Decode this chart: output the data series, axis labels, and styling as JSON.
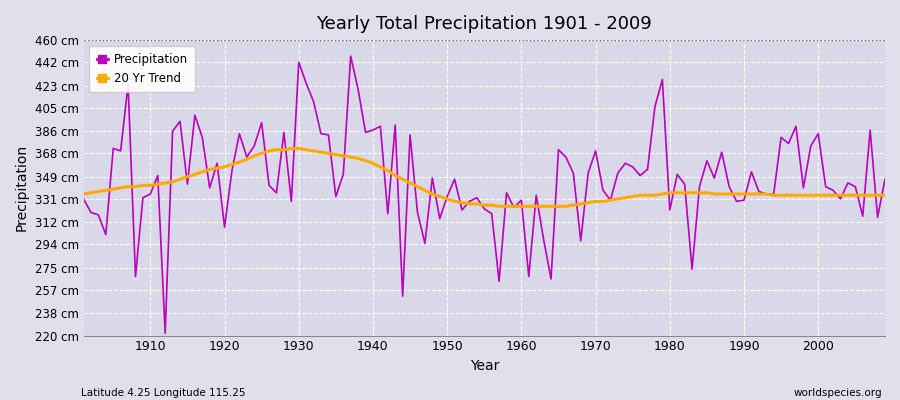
{
  "title": "Yearly Total Precipitation 1901 - 2009",
  "xlabel": "Year",
  "ylabel": "Precipitation",
  "footnote_left": "Latitude 4.25 Longitude 115.25",
  "footnote_right": "worldspecies.org",
  "legend": [
    "Precipitation",
    "20 Yr Trend"
  ],
  "precip_color": "#bb00bb",
  "trend_color": "#ffaa00",
  "bg_color": "#e0e0ec",
  "plot_bg_color": "#d8d8e8",
  "ylim": [
    220,
    460
  ],
  "yticks": [
    220,
    238,
    257,
    275,
    294,
    312,
    331,
    349,
    368,
    386,
    405,
    423,
    442,
    460
  ],
  "xlim": [
    1901,
    2009
  ],
  "xticks": [
    1910,
    1920,
    1930,
    1940,
    1950,
    1960,
    1970,
    1980,
    1990,
    2000
  ],
  "years": [
    1901,
    1902,
    1903,
    1904,
    1905,
    1906,
    1907,
    1908,
    1909,
    1910,
    1911,
    1912,
    1913,
    1914,
    1915,
    1916,
    1917,
    1918,
    1919,
    1920,
    1921,
    1922,
    1923,
    1924,
    1925,
    1926,
    1927,
    1928,
    1929,
    1930,
    1931,
    1932,
    1933,
    1934,
    1935,
    1936,
    1937,
    1938,
    1939,
    1940,
    1941,
    1942,
    1943,
    1944,
    1945,
    1946,
    1947,
    1948,
    1949,
    1950,
    1951,
    1952,
    1953,
    1954,
    1955,
    1956,
    1957,
    1958,
    1959,
    1960,
    1961,
    1962,
    1963,
    1964,
    1965,
    1966,
    1967,
    1968,
    1969,
    1970,
    1971,
    1972,
    1973,
    1974,
    1975,
    1976,
    1977,
    1978,
    1979,
    1980,
    1981,
    1982,
    1983,
    1984,
    1985,
    1986,
    1987,
    1988,
    1989,
    1990,
    1991,
    1992,
    1993,
    1994,
    1995,
    1996,
    1997,
    1998,
    1999,
    2000,
    2001,
    2002,
    2003,
    2004,
    2005,
    2006,
    2007,
    2008,
    2009
  ],
  "precip": [
    331,
    320,
    318,
    302,
    372,
    370,
    424,
    268,
    332,
    335,
    350,
    222,
    386,
    394,
    343,
    399,
    381,
    340,
    360,
    308,
    354,
    384,
    365,
    374,
    393,
    342,
    336,
    385,
    329,
    442,
    425,
    410,
    384,
    383,
    333,
    351,
    447,
    420,
    385,
    387,
    390,
    319,
    391,
    252,
    383,
    320,
    295,
    348,
    315,
    333,
    347,
    322,
    329,
    332,
    323,
    319,
    264,
    336,
    324,
    330,
    268,
    334,
    298,
    266,
    371,
    365,
    352,
    297,
    352,
    370,
    338,
    330,
    352,
    360,
    357,
    350,
    355,
    406,
    428,
    322,
    351,
    343,
    274,
    341,
    362,
    348,
    369,
    341,
    329,
    330,
    353,
    337,
    335,
    335,
    381,
    376,
    390,
    340,
    374,
    384,
    341,
    338,
    331,
    344,
    341,
    317,
    387,
    316,
    347
  ],
  "trend": [
    335,
    336,
    337,
    338,
    339,
    340,
    341,
    341,
    342,
    342,
    343,
    344,
    345,
    347,
    349,
    351,
    353,
    355,
    356,
    357,
    359,
    361,
    363,
    366,
    368,
    370,
    371,
    371,
    372,
    372,
    371,
    370,
    369,
    368,
    367,
    366,
    365,
    364,
    362,
    360,
    357,
    354,
    350,
    347,
    344,
    341,
    338,
    335,
    333,
    331,
    329,
    328,
    327,
    327,
    326,
    326,
    325,
    325,
    325,
    325,
    325,
    325,
    325,
    325,
    325,
    325,
    326,
    327,
    328,
    329,
    329,
    330,
    331,
    332,
    333,
    334,
    334,
    334,
    335,
    336,
    336,
    336,
    336,
    336,
    336,
    335,
    335,
    335,
    335,
    335,
    335,
    335,
    335,
    334,
    334,
    334,
    334,
    334,
    334,
    334,
    334,
    334,
    334,
    334,
    334,
    334,
    334,
    334,
    334
  ]
}
